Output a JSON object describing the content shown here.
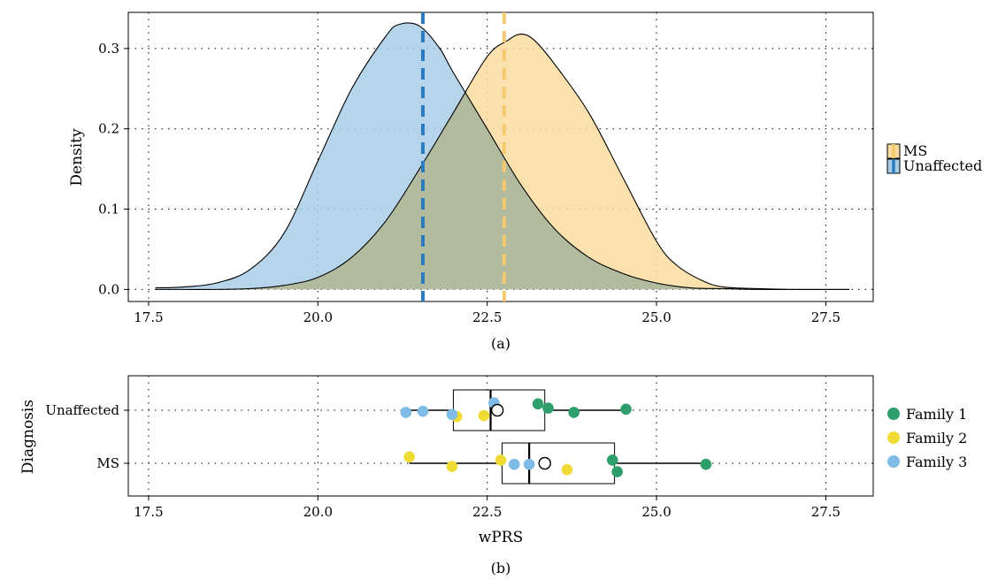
{
  "figure": {
    "panel_a_label": "(a)",
    "panel_b_label": "(b)"
  },
  "chart_data": [
    {
      "type": "area",
      "panel": "(a)",
      "title": "",
      "xlabel": "",
      "ylabel": "Density",
      "xlim": [
        17.2,
        28.2
      ],
      "ylim": [
        -0.015,
        0.345
      ],
      "xticks": [
        "17.5",
        "20.0",
        "22.5",
        "25.0",
        "27.5"
      ],
      "xtick_values": [
        17.5,
        20.0,
        22.5,
        25.0,
        27.5
      ],
      "yticks": [
        "0.0",
        "0.1",
        "0.2",
        "0.3"
      ],
      "ytick_values": [
        0.0,
        0.1,
        0.2,
        0.3
      ],
      "grid": true,
      "legend_position": "right",
      "series": [
        {
          "name": "MS",
          "color": "#F5C96E",
          "fill": "#F9DC9F",
          "mean": 22.75,
          "x": [
            17.6,
            18.0,
            18.5,
            19.0,
            19.5,
            20.0,
            20.5,
            21.0,
            21.5,
            22.0,
            22.5,
            22.8,
            23.0,
            23.2,
            23.5,
            24.0,
            24.5,
            25.0,
            25.3,
            25.7,
            26.0,
            26.5,
            27.0,
            27.5,
            27.85
          ],
          "y": [
            0.0,
            0.0,
            0.0,
            0.001,
            0.005,
            0.015,
            0.04,
            0.085,
            0.15,
            0.22,
            0.29,
            0.31,
            0.318,
            0.31,
            0.28,
            0.22,
            0.14,
            0.06,
            0.03,
            0.01,
            0.003,
            0.001,
            0.0,
            0.0,
            0.0
          ]
        },
        {
          "name": "Unaffected",
          "color": "#2C7BBF",
          "fill": "#A9CCE6",
          "mean": 21.55,
          "x": [
            17.6,
            18.0,
            18.5,
            19.0,
            19.5,
            20.0,
            20.5,
            21.0,
            21.2,
            21.5,
            21.8,
            22.0,
            22.5,
            23.0,
            23.5,
            24.0,
            24.5,
            25.0,
            25.5,
            26.0,
            26.5,
            27.0,
            27.5,
            27.85
          ],
          "y": [
            0.002,
            0.003,
            0.008,
            0.025,
            0.07,
            0.16,
            0.25,
            0.315,
            0.33,
            0.328,
            0.3,
            0.27,
            0.2,
            0.13,
            0.075,
            0.04,
            0.02,
            0.008,
            0.002,
            0.001,
            0.0,
            0.0,
            0.0,
            0.0
          ]
        }
      ]
    },
    {
      "type": "scatter",
      "panel": "(b)",
      "title": "",
      "xlabel": "wPRS",
      "ylabel": "Diagnosis",
      "xlim": [
        17.2,
        28.2
      ],
      "xticks": [
        "17.5",
        "20.0",
        "22.5",
        "25.0",
        "27.5"
      ],
      "xtick_values": [
        17.5,
        20.0,
        22.5,
        25.0,
        27.5
      ],
      "categories": [
        "Unaffected",
        "MS"
      ],
      "grid": true,
      "legend_position": "right",
      "boxes": [
        {
          "category": "Unaffected",
          "whisker_low": 21.3,
          "q1": 22.0,
          "median": 22.55,
          "q3": 23.35,
          "whisker_high": 24.55,
          "mean": 22.65
        },
        {
          "category": "MS",
          "whisker_low": 21.35,
          "q1": 22.72,
          "median": 23.12,
          "q3": 24.38,
          "whisker_high": 25.72,
          "mean": 23.35
        }
      ],
      "series": [
        {
          "name": "Family 1",
          "color": "#2E9E6B",
          "points": [
            {
              "category": "Unaffected",
              "x": 23.25,
              "dy": 0.12
            },
            {
              "category": "Unaffected",
              "x": 23.4,
              "dy": 0.04
            },
            {
              "category": "Unaffected",
              "x": 23.78,
              "dy": -0.04
            },
            {
              "category": "Unaffected",
              "x": 24.55,
              "dy": 0.02
            },
            {
              "category": "MS",
              "x": 24.35,
              "dy": 0.06
            },
            {
              "category": "MS",
              "x": 24.42,
              "dy": -0.16
            },
            {
              "category": "MS",
              "x": 25.73,
              "dy": -0.02
            }
          ]
        },
        {
          "name": "Family 2",
          "color": "#F0DA34",
          "points": [
            {
              "category": "Unaffected",
              "x": 22.05,
              "dy": -0.12
            },
            {
              "category": "Unaffected",
              "x": 22.45,
              "dy": -0.1
            },
            {
              "category": "MS",
              "x": 21.35,
              "dy": 0.12
            },
            {
              "category": "MS",
              "x": 21.98,
              "dy": -0.06
            },
            {
              "category": "MS",
              "x": 22.7,
              "dy": 0.06
            },
            {
              "category": "MS",
              "x": 23.68,
              "dy": -0.12
            }
          ]
        },
        {
          "name": "Family 3",
          "color": "#7FBCE5",
          "points": [
            {
              "category": "Unaffected",
              "x": 21.3,
              "dy": -0.04
            },
            {
              "category": "Unaffected",
              "x": 21.55,
              "dy": -0.02
            },
            {
              "category": "Unaffected",
              "x": 21.98,
              "dy": -0.08
            },
            {
              "category": "Unaffected",
              "x": 22.6,
              "dy": 0.14
            },
            {
              "category": "MS",
              "x": 22.9,
              "dy": -0.02
            },
            {
              "category": "MS",
              "x": 23.12,
              "dy": -0.02
            }
          ]
        }
      ]
    }
  ]
}
